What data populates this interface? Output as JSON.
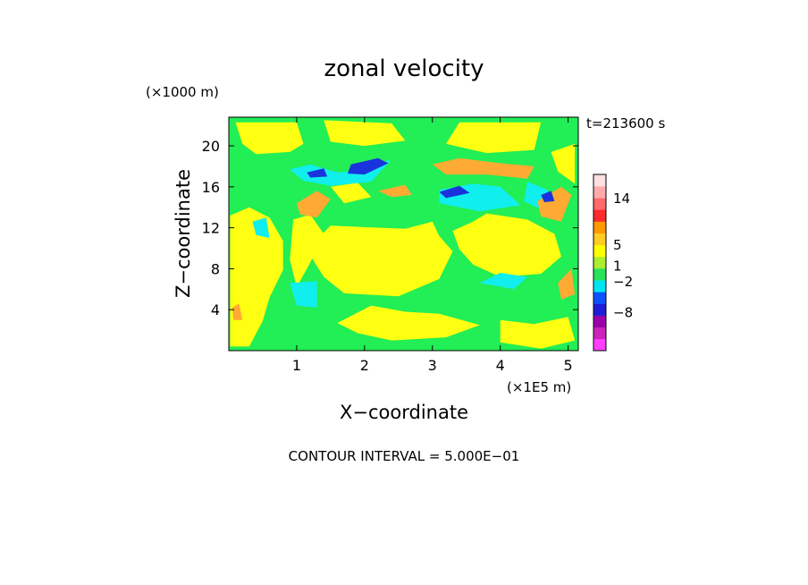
{
  "chart_data": {
    "type": "heatmap",
    "title": "zonal velocity",
    "xlabel": "X−coordinate",
    "ylabel": "Z−coordinate",
    "x_unit_label": "(×1E5 m)",
    "y_unit_label": "(×1000 m)",
    "time_label": "t=213600 s",
    "footer": "CONTOUR INTERVAL = 5.000E−01",
    "xlim": [
      0,
      5.15
    ],
    "ylim": [
      0,
      22.8
    ],
    "x_ticks": [
      1,
      2,
      3,
      4,
      5
    ],
    "x_tick_labels": [
      "1",
      "2",
      "3",
      "4",
      "5"
    ],
    "y_ticks": [
      4,
      8,
      12,
      16,
      20
    ],
    "y_tick_labels": [
      "4",
      "8",
      "12",
      "16",
      "20"
    ],
    "grid": false,
    "colorbar": {
      "ticks": [
        14,
        5,
        1,
        -2,
        -8
      ],
      "tick_labels": [
        "14",
        "5",
        "1",
        "−2",
        "−8"
      ],
      "bands": [
        {
          "color": "#ff3eff"
        },
        {
          "color": "#cc22bb"
        },
        {
          "color": "#9900aa"
        },
        {
          "color": "#1d1dd6"
        },
        {
          "color": "#0c52ff"
        },
        {
          "color": "#00e5f2"
        },
        {
          "color": "#26e35a"
        },
        {
          "color": "#aaee2e"
        },
        {
          "color": "#ffff00"
        },
        {
          "color": "#ffcc22"
        },
        {
          "color": "#ff9900"
        },
        {
          "color": "#ff2a2a"
        },
        {
          "color": "#ff6a6a"
        },
        {
          "color": "#ffaaaa"
        },
        {
          "color": "#ffe0e0"
        }
      ]
    },
    "palette": {
      "green": "#22ee55",
      "yellow": "#ffff11",
      "cyan": "#11eeee",
      "orange": "#ffaa33",
      "blue": "#1a33dd"
    },
    "regions": [
      {
        "color": "yellow",
        "points": [
          [
            0.1,
            22.3
          ],
          [
            1.0,
            22.3
          ],
          [
            1.1,
            20.2
          ],
          [
            0.9,
            19.4
          ],
          [
            0.4,
            19.2
          ],
          [
            0.2,
            20.2
          ]
        ]
      },
      {
        "color": "yellow",
        "points": [
          [
            1.4,
            22.5
          ],
          [
            2.4,
            22.2
          ],
          [
            2.6,
            20.5
          ],
          [
            2.0,
            20.0
          ],
          [
            1.5,
            20.4
          ]
        ]
      },
      {
        "color": "yellow",
        "points": [
          [
            3.4,
            22.3
          ],
          [
            4.6,
            22.3
          ],
          [
            4.5,
            19.6
          ],
          [
            3.8,
            19.3
          ],
          [
            3.2,
            20.2
          ]
        ]
      },
      {
        "color": "yellow",
        "points": [
          [
            1.5,
            12.2
          ],
          [
            2.6,
            11.9
          ],
          [
            3.0,
            12.6
          ],
          [
            3.1,
            11.2
          ],
          [
            3.3,
            9.7
          ],
          [
            3.1,
            7.0
          ],
          [
            2.5,
            5.3
          ],
          [
            1.7,
            5.6
          ],
          [
            1.4,
            7.2
          ],
          [
            1.2,
            9.3
          ],
          [
            1.3,
            10.9
          ]
        ]
      },
      {
        "color": "yellow",
        "points": [
          [
            3.3,
            11.7
          ],
          [
            3.6,
            12.6
          ],
          [
            3.8,
            13.4
          ],
          [
            4.4,
            12.8
          ],
          [
            4.8,
            11.4
          ],
          [
            4.9,
            9.2
          ],
          [
            4.6,
            7.5
          ],
          [
            4.0,
            7.2
          ],
          [
            3.6,
            8.4
          ],
          [
            3.4,
            9.9
          ]
        ]
      },
      {
        "color": "yellow",
        "points": [
          [
            2.1,
            4.4
          ],
          [
            2.6,
            3.8
          ],
          [
            3.1,
            3.6
          ],
          [
            3.7,
            2.5
          ],
          [
            3.2,
            1.3
          ],
          [
            2.4,
            1.0
          ],
          [
            1.9,
            1.7
          ],
          [
            1.6,
            2.7
          ]
        ]
      },
      {
        "color": "yellow",
        "points": [
          [
            4.0,
            3.0
          ],
          [
            4.5,
            2.6
          ],
          [
            5.0,
            3.3
          ],
          [
            5.1,
            1.0
          ],
          [
            4.6,
            0.2
          ],
          [
            4.0,
            0.8
          ]
        ]
      },
      {
        "color": "yellow",
        "points": [
          [
            0.02,
            13.2
          ],
          [
            0.3,
            14.0
          ],
          [
            0.6,
            13.0
          ],
          [
            0.8,
            10.7
          ],
          [
            0.8,
            7.9
          ],
          [
            0.6,
            5.2
          ],
          [
            0.5,
            2.9
          ],
          [
            0.3,
            0.4
          ],
          [
            0.02,
            0.4
          ]
        ]
      },
      {
        "color": "yellow",
        "points": [
          [
            0.95,
            12.8
          ],
          [
            1.2,
            13.3
          ],
          [
            1.4,
            11.4
          ],
          [
            1.2,
            8.6
          ],
          [
            1.0,
            6.2
          ],
          [
            0.9,
            8.9
          ]
        ]
      },
      {
        "color": "yellow",
        "points": [
          [
            4.75,
            19.4
          ],
          [
            5.1,
            20.2
          ],
          [
            5.1,
            16.3
          ],
          [
            4.85,
            17.5
          ]
        ]
      },
      {
        "color": "yellow",
        "points": [
          [
            1.5,
            16.0
          ],
          [
            1.9,
            16.4
          ],
          [
            2.1,
            15.0
          ],
          [
            1.7,
            14.4
          ]
        ]
      },
      {
        "color": "cyan",
        "points": [
          [
            0.9,
            17.7
          ],
          [
            1.2,
            18.2
          ],
          [
            1.6,
            17.4
          ],
          [
            2.0,
            17.6
          ],
          [
            2.4,
            18.7
          ],
          [
            2.1,
            16.5
          ],
          [
            1.5,
            16.1
          ],
          [
            1.1,
            16.6
          ]
        ]
      },
      {
        "color": "cyan",
        "points": [
          [
            3.1,
            15.7
          ],
          [
            3.6,
            16.3
          ],
          [
            4.0,
            16.0
          ],
          [
            4.3,
            14.2
          ],
          [
            3.7,
            13.6
          ],
          [
            3.1,
            14.4
          ]
        ]
      },
      {
        "color": "cyan",
        "points": [
          [
            4.4,
            16.5
          ],
          [
            4.7,
            15.7
          ],
          [
            4.6,
            13.8
          ],
          [
            4.35,
            14.6
          ]
        ]
      },
      {
        "color": "cyan",
        "points": [
          [
            0.9,
            6.6
          ],
          [
            1.3,
            6.8
          ],
          [
            1.3,
            4.2
          ],
          [
            1.0,
            4.4
          ]
        ]
      },
      {
        "color": "cyan",
        "points": [
          [
            3.7,
            6.6
          ],
          [
            4.0,
            7.6
          ],
          [
            4.4,
            7.2
          ],
          [
            4.2,
            6.0
          ]
        ]
      },
      {
        "color": "cyan",
        "points": [
          [
            0.35,
            12.6
          ],
          [
            0.55,
            13.0
          ],
          [
            0.6,
            11.0
          ],
          [
            0.4,
            11.3
          ]
        ]
      },
      {
        "color": "orange",
        "points": [
          [
            3.0,
            18.2
          ],
          [
            3.4,
            18.8
          ],
          [
            4.0,
            18.3
          ],
          [
            4.5,
            18.0
          ],
          [
            4.4,
            16.8
          ],
          [
            3.8,
            17.2
          ],
          [
            3.2,
            17.2
          ]
        ]
      },
      {
        "color": "orange",
        "points": [
          [
            1.0,
            14.4
          ],
          [
            1.3,
            15.6
          ],
          [
            1.5,
            14.8
          ],
          [
            1.3,
            13.0
          ],
          [
            1.05,
            13.3
          ]
        ]
      },
      {
        "color": "orange",
        "points": [
          [
            4.55,
            14.6
          ],
          [
            4.9,
            16.0
          ],
          [
            5.05,
            15.2
          ],
          [
            4.9,
            12.6
          ],
          [
            4.6,
            13.1
          ]
        ]
      },
      {
        "color": "orange",
        "points": [
          [
            2.2,
            15.6
          ],
          [
            2.6,
            16.2
          ],
          [
            2.7,
            15.2
          ],
          [
            2.4,
            15.0
          ]
        ]
      },
      {
        "color": "orange",
        "points": [
          [
            0.05,
            4.2
          ],
          [
            0.15,
            4.6
          ],
          [
            0.2,
            3.0
          ],
          [
            0.07,
            3.0
          ]
        ]
      },
      {
        "color": "orange",
        "points": [
          [
            4.85,
            6.6
          ],
          [
            5.05,
            8.0
          ],
          [
            5.1,
            5.5
          ],
          [
            4.9,
            5.0
          ]
        ]
      },
      {
        "color": "blue",
        "points": [
          [
            1.15,
            17.4
          ],
          [
            1.4,
            17.8
          ],
          [
            1.45,
            17.0
          ],
          [
            1.2,
            16.9
          ]
        ]
      },
      {
        "color": "blue",
        "points": [
          [
            1.8,
            18.2
          ],
          [
            2.2,
            18.8
          ],
          [
            2.35,
            18.3
          ],
          [
            2.0,
            17.2
          ],
          [
            1.75,
            17.3
          ]
        ]
      },
      {
        "color": "blue",
        "points": [
          [
            3.1,
            15.5
          ],
          [
            3.4,
            16.1
          ],
          [
            3.55,
            15.4
          ],
          [
            3.2,
            14.9
          ]
        ]
      },
      {
        "color": "blue",
        "points": [
          [
            4.6,
            15.2
          ],
          [
            4.75,
            15.6
          ],
          [
            4.8,
            14.6
          ],
          [
            4.65,
            14.5
          ]
        ]
      }
    ]
  }
}
